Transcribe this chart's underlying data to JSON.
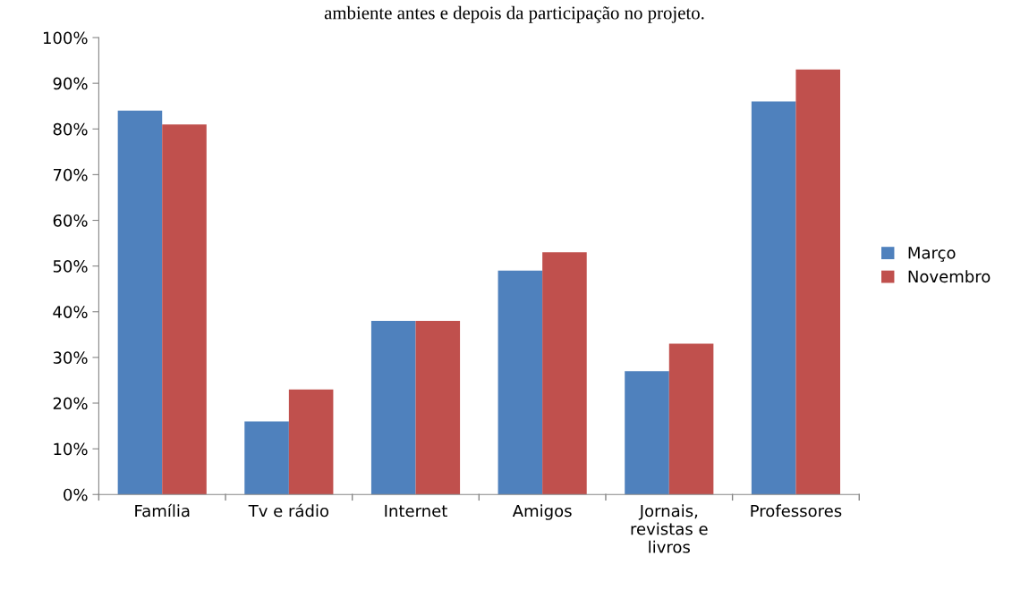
{
  "chart_data": {
    "type": "bar",
    "title": "ambiente antes e depois da participação no projeto.",
    "categories": [
      "Família",
      "Tv e rádio",
      "Internet",
      "Amigos",
      "Jornais,\nrevistas e\nlivros",
      "Professores"
    ],
    "series": [
      {
        "name": "Março",
        "color": "#4f81bd",
        "values": [
          84,
          16,
          38,
          49,
          27,
          86
        ]
      },
      {
        "name": "Novembro",
        "color": "#c0504d",
        "values": [
          81,
          23,
          38,
          53,
          33,
          93
        ]
      }
    ],
    "ylim": [
      0,
      100
    ],
    "yticks": [
      {
        "value": 0,
        "label": "0%"
      },
      {
        "value": 10,
        "label": "10%"
      },
      {
        "value": 20,
        "label": "20%"
      },
      {
        "value": 30,
        "label": "30%"
      },
      {
        "value": 40,
        "label": "40%"
      },
      {
        "value": 50,
        "label": "50%"
      },
      {
        "value": 60,
        "label": "60%"
      },
      {
        "value": 70,
        "label": "70%"
      },
      {
        "value": 80,
        "label": "80%"
      },
      {
        "value": 90,
        "label": "90%"
      },
      {
        "value": 100,
        "label": "100%"
      }
    ],
    "grid": false,
    "legend": "right"
  }
}
